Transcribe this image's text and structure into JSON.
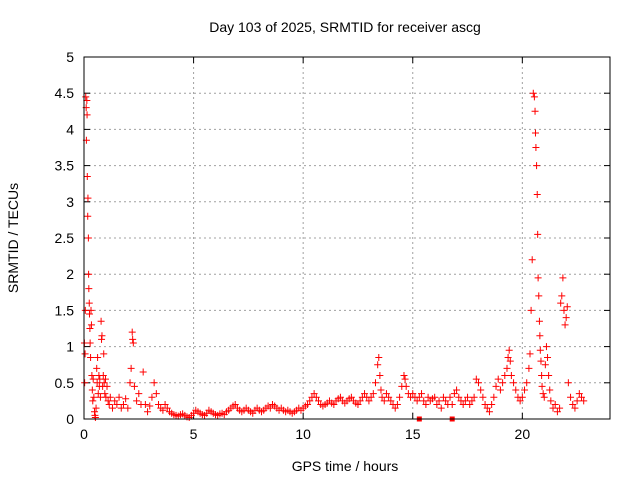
{
  "chart_data": {
    "type": "scatter",
    "title": "Day 103 of 2025, SRMTID for receiver ascg",
    "xlabel": "GPS time / hours",
    "ylabel": "SRMTID / TECUs",
    "xlim": [
      0,
      24
    ],
    "ylim": [
      0,
      5
    ],
    "x_ticks": [
      0,
      5,
      10,
      15,
      20
    ],
    "y_ticks": [
      0,
      0.5,
      1,
      1.5,
      2,
      2.5,
      3,
      3.5,
      4,
      4.5,
      5
    ],
    "x_tick_labels": [
      "0",
      "5",
      "10",
      "15",
      "20"
    ],
    "y_tick_labels": [
      "0",
      "0.5",
      "1",
      "1.5",
      "2",
      "2.5",
      "3",
      "3.5",
      "4",
      "4.5",
      "5"
    ],
    "grid": true,
    "marker": "+",
    "series_color": "#ff0000",
    "series": [
      {
        "name": "SRMTID",
        "points": [
          [
            0.02,
            1.05
          ],
          [
            0.03,
            0.5
          ],
          [
            0.05,
            0.9
          ],
          [
            0.06,
            1.5
          ],
          [
            0.08,
            4.45
          ],
          [
            0.1,
            4.3
          ],
          [
            0.11,
            3.85
          ],
          [
            0.13,
            4.4
          ],
          [
            0.14,
            4.2
          ],
          [
            0.15,
            3.35
          ],
          [
            0.17,
            2.8
          ],
          [
            0.18,
            3.05
          ],
          [
            0.2,
            2.5
          ],
          [
            0.21,
            2.0
          ],
          [
            0.22,
            1.8
          ],
          [
            0.24,
            1.6
          ],
          [
            0.25,
            1.45
          ],
          [
            0.27,
            1.25
          ],
          [
            0.28,
            1.05
          ],
          [
            0.3,
            0.85
          ],
          [
            0.32,
            1.5
          ],
          [
            0.34,
            1.3
          ],
          [
            0.36,
            0.6
          ],
          [
            0.38,
            0.4
          ],
          [
            0.4,
            0.25
          ],
          [
            0.42,
            0.55
          ],
          [
            0.45,
            0.3
          ],
          [
            0.48,
            0.1
          ],
          [
            0.5,
            0.05
          ],
          [
            0.52,
            0.02
          ],
          [
            0.55,
            0.15
          ],
          [
            0.58,
            0.7
          ],
          [
            0.6,
            0.5
          ],
          [
            0.62,
            0.85
          ],
          [
            0.65,
            0.35
          ],
          [
            0.68,
            0.6
          ],
          [
            0.7,
            0.45
          ],
          [
            0.72,
            0.55
          ],
          [
            0.75,
            0.3
          ],
          [
            0.78,
            1.35
          ],
          [
            0.8,
            1.1
          ],
          [
            0.82,
            1.15
          ],
          [
            0.85,
            0.45
          ],
          [
            0.88,
            0.6
          ],
          [
            0.9,
            0.9
          ],
          [
            0.92,
            0.5
          ],
          [
            0.95,
            0.35
          ],
          [
            0.98,
            0.55
          ],
          [
            1.0,
            0.3
          ],
          [
            1.05,
            0.45
          ],
          [
            1.1,
            0.25
          ],
          [
            1.15,
            0.2
          ],
          [
            1.2,
            0.3
          ],
          [
            1.3,
            0.15
          ],
          [
            1.4,
            0.25
          ],
          [
            1.5,
            0.2
          ],
          [
            1.6,
            0.3
          ],
          [
            1.7,
            0.15
          ],
          [
            1.8,
            0.2
          ],
          [
            1.9,
            0.28
          ],
          [
            2.0,
            0.15
          ],
          [
            2.1,
            0.5
          ],
          [
            2.15,
            0.7
          ],
          [
            2.2,
            1.2
          ],
          [
            2.22,
            1.1
          ],
          [
            2.25,
            1.05
          ],
          [
            2.3,
            0.45
          ],
          [
            2.4,
            0.25
          ],
          [
            2.5,
            0.35
          ],
          [
            2.6,
            0.2
          ],
          [
            2.7,
            0.65
          ],
          [
            2.8,
            0.2
          ],
          [
            2.9,
            0.1
          ],
          [
            3.0,
            0.18
          ],
          [
            3.1,
            0.3
          ],
          [
            3.2,
            0.5
          ],
          [
            3.3,
            0.35
          ],
          [
            3.4,
            0.2
          ],
          [
            3.5,
            0.15
          ],
          [
            3.6,
            0.12
          ],
          [
            3.7,
            0.2
          ],
          [
            3.8,
            0.15
          ],
          [
            3.9,
            0.1
          ],
          [
            4.0,
            0.08
          ],
          [
            4.1,
            0.06
          ],
          [
            4.2,
            0.05
          ],
          [
            4.3,
            0.04
          ],
          [
            4.4,
            0.06
          ],
          [
            4.5,
            0.07
          ],
          [
            4.6,
            0.05
          ],
          [
            4.7,
            0.03
          ],
          [
            4.8,
            0.02
          ],
          [
            4.9,
            0.05
          ],
          [
            5.0,
            0.08
          ],
          [
            5.1,
            0.12
          ],
          [
            5.2,
            0.1
          ],
          [
            5.3,
            0.08
          ],
          [
            5.4,
            0.06
          ],
          [
            5.5,
            0.05
          ],
          [
            5.6,
            0.08
          ],
          [
            5.7,
            0.12
          ],
          [
            5.8,
            0.1
          ],
          [
            5.9,
            0.08
          ],
          [
            6.0,
            0.06
          ],
          [
            6.1,
            0.05
          ],
          [
            6.2,
            0.07
          ],
          [
            6.3,
            0.08
          ],
          [
            6.4,
            0.06
          ],
          [
            6.5,
            0.1
          ],
          [
            6.6,
            0.12
          ],
          [
            6.7,
            0.15
          ],
          [
            6.8,
            0.18
          ],
          [
            6.9,
            0.2
          ],
          [
            7.0,
            0.15
          ],
          [
            7.1,
            0.12
          ],
          [
            7.2,
            0.1
          ],
          [
            7.3,
            0.12
          ],
          [
            7.4,
            0.15
          ],
          [
            7.5,
            0.12
          ],
          [
            7.6,
            0.1
          ],
          [
            7.7,
            0.08
          ],
          [
            7.8,
            0.12
          ],
          [
            7.9,
            0.15
          ],
          [
            8.0,
            0.12
          ],
          [
            8.1,
            0.1
          ],
          [
            8.2,
            0.12
          ],
          [
            8.3,
            0.15
          ],
          [
            8.4,
            0.18
          ],
          [
            8.5,
            0.15
          ],
          [
            8.6,
            0.2
          ],
          [
            8.7,
            0.18
          ],
          [
            8.8,
            0.15
          ],
          [
            8.9,
            0.12
          ],
          [
            9.0,
            0.15
          ],
          [
            9.1,
            0.12
          ],
          [
            9.2,
            0.1
          ],
          [
            9.3,
            0.12
          ],
          [
            9.4,
            0.1
          ],
          [
            9.5,
            0.08
          ],
          [
            9.6,
            0.1
          ],
          [
            9.7,
            0.12
          ],
          [
            9.8,
            0.15
          ],
          [
            9.9,
            0.12
          ],
          [
            10.0,
            0.15
          ],
          [
            10.1,
            0.18
          ],
          [
            10.2,
            0.2
          ],
          [
            10.3,
            0.25
          ],
          [
            10.4,
            0.3
          ],
          [
            10.5,
            0.35
          ],
          [
            10.6,
            0.3
          ],
          [
            10.7,
            0.25
          ],
          [
            10.8,
            0.2
          ],
          [
            10.9,
            0.18
          ],
          [
            11.0,
            0.2
          ],
          [
            11.1,
            0.22
          ],
          [
            11.2,
            0.25
          ],
          [
            11.3,
            0.22
          ],
          [
            11.4,
            0.2
          ],
          [
            11.5,
            0.25
          ],
          [
            11.6,
            0.28
          ],
          [
            11.7,
            0.3
          ],
          [
            11.8,
            0.25
          ],
          [
            11.9,
            0.22
          ],
          [
            12.0,
            0.25
          ],
          [
            12.1,
            0.28
          ],
          [
            12.2,
            0.3
          ],
          [
            12.3,
            0.25
          ],
          [
            12.4,
            0.22
          ],
          [
            12.5,
            0.2
          ],
          [
            12.6,
            0.25
          ],
          [
            12.7,
            0.3
          ],
          [
            12.8,
            0.35
          ],
          [
            12.9,
            0.3
          ],
          [
            13.0,
            0.25
          ],
          [
            13.1,
            0.3
          ],
          [
            13.2,
            0.35
          ],
          [
            13.3,
            0.5
          ],
          [
            13.4,
            0.75
          ],
          [
            13.45,
            0.85
          ],
          [
            13.5,
            0.6
          ],
          [
            13.55,
            0.4
          ],
          [
            13.6,
            0.3
          ],
          [
            13.7,
            0.25
          ],
          [
            13.8,
            0.35
          ],
          [
            13.9,
            0.3
          ],
          [
            14.0,
            0.25
          ],
          [
            14.1,
            0.2
          ],
          [
            14.2,
            0.15
          ],
          [
            14.3,
            0.2
          ],
          [
            14.4,
            0.3
          ],
          [
            14.5,
            0.45
          ],
          [
            14.6,
            0.6
          ],
          [
            14.65,
            0.55
          ],
          [
            14.7,
            0.45
          ],
          [
            14.8,
            0.35
          ],
          [
            14.9,
            0.3
          ],
          [
            15.0,
            0.35
          ],
          [
            15.1,
            0.3
          ],
          [
            15.2,
            0.25
          ],
          [
            15.3,
            0.3
          ],
          [
            15.4,
            0.35
          ],
          [
            15.5,
            0.25
          ],
          [
            15.6,
            0.2
          ],
          [
            15.7,
            0.3
          ],
          [
            15.8,
            0.25
          ],
          [
            15.9,
            0.28
          ],
          [
            16.0,
            0.3
          ],
          [
            16.1,
            0.2
          ],
          [
            16.2,
            0.25
          ],
          [
            16.3,
            0.15
          ],
          [
            16.4,
            0.3
          ],
          [
            16.5,
            0.25
          ],
          [
            16.6,
            0.2
          ],
          [
            16.7,
            0.3
          ],
          [
            16.8,
            0.2
          ],
          [
            16.9,
            0.35
          ],
          [
            17.0,
            0.4
          ],
          [
            17.1,
            0.3
          ],
          [
            17.2,
            0.25
          ],
          [
            17.3,
            0.2
          ],
          [
            17.4,
            0.25
          ],
          [
            17.5,
            0.3
          ],
          [
            17.6,
            0.2
          ],
          [
            17.7,
            0.25
          ],
          [
            17.8,
            0.3
          ],
          [
            17.9,
            0.55
          ],
          [
            18.0,
            0.5
          ],
          [
            18.1,
            0.4
          ],
          [
            18.2,
            0.3
          ],
          [
            18.3,
            0.2
          ],
          [
            18.4,
            0.15
          ],
          [
            18.5,
            0.1
          ],
          [
            18.6,
            0.2
          ],
          [
            18.7,
            0.3
          ],
          [
            18.8,
            0.45
          ],
          [
            18.9,
            0.55
          ],
          [
            19.0,
            0.4
          ],
          [
            19.1,
            0.5
          ],
          [
            19.2,
            0.6
          ],
          [
            19.3,
            0.7
          ],
          [
            19.35,
            0.85
          ],
          [
            19.4,
            0.95
          ],
          [
            19.45,
            0.8
          ],
          [
            19.5,
            0.6
          ],
          [
            19.6,
            0.5
          ],
          [
            19.7,
            0.4
          ],
          [
            19.8,
            0.3
          ],
          [
            19.9,
            0.25
          ],
          [
            20.0,
            0.3
          ],
          [
            20.1,
            0.4
          ],
          [
            20.2,
            0.5
          ],
          [
            20.3,
            0.7
          ],
          [
            20.35,
            0.9
          ],
          [
            20.4,
            1.5
          ],
          [
            20.45,
            2.2
          ],
          [
            20.5,
            4.5
          ],
          [
            20.55,
            4.45
          ],
          [
            20.58,
            4.25
          ],
          [
            20.6,
            3.95
          ],
          [
            20.62,
            3.75
          ],
          [
            20.65,
            3.5
          ],
          [
            20.68,
            3.1
          ],
          [
            20.7,
            2.55
          ],
          [
            20.72,
            1.95
          ],
          [
            20.75,
            1.7
          ],
          [
            20.78,
            1.35
          ],
          [
            20.8,
            1.15
          ],
          [
            20.82,
            0.95
          ],
          [
            20.85,
            0.8
          ],
          [
            20.88,
            0.6
          ],
          [
            20.9,
            0.45
          ],
          [
            20.95,
            0.35
          ],
          [
            21.0,
            0.3
          ],
          [
            21.05,
            0.75
          ],
          [
            21.1,
            1.0
          ],
          [
            21.15,
            0.85
          ],
          [
            21.2,
            0.6
          ],
          [
            21.25,
            0.4
          ],
          [
            21.3,
            0.25
          ],
          [
            21.4,
            0.15
          ],
          [
            21.5,
            0.2
          ],
          [
            21.6,
            0.1
          ],
          [
            21.7,
            0.15
          ],
          [
            21.75,
            1.6
          ],
          [
            21.8,
            1.7
          ],
          [
            21.85,
            1.95
          ],
          [
            21.9,
            1.5
          ],
          [
            21.95,
            1.3
          ],
          [
            22.0,
            1.4
          ],
          [
            22.05,
            1.55
          ],
          [
            22.1,
            0.5
          ],
          [
            22.2,
            0.3
          ],
          [
            22.3,
            0.2
          ],
          [
            22.4,
            0.15
          ],
          [
            22.5,
            0.25
          ],
          [
            22.6,
            0.35
          ],
          [
            22.7,
            0.3
          ],
          [
            22.8,
            0.25
          ]
        ]
      }
    ],
    "outlier_squares": [
      [
        15.3,
        0.0
      ],
      [
        16.8,
        0.0
      ]
    ]
  }
}
